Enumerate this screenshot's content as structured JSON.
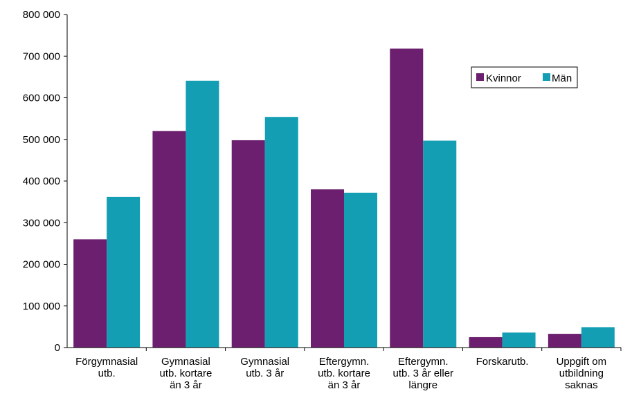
{
  "chart_data": {
    "type": "bar",
    "categories": [
      [
        "Förgymnasial",
        "utb."
      ],
      [
        "Gymnasial",
        "utb. kortare",
        "än 3 år"
      ],
      [
        "Gymnasial",
        "utb. 3 år"
      ],
      [
        "Eftergymn.",
        "utb. kortare",
        "än 3 år"
      ],
      [
        "Eftergymn.",
        "utb. 3 år eller",
        "längre"
      ],
      [
        "Forskarutb."
      ],
      [
        "Uppgift om",
        "utbildning",
        "saknas"
      ]
    ],
    "series": [
      {
        "name": "Kvinnor",
        "color": "#6b1f6e",
        "values": [
          260000,
          520000,
          498000,
          380000,
          718000,
          25000,
          33000
        ]
      },
      {
        "name": "Män",
        "color": "#139eb3",
        "values": [
          362000,
          641000,
          554000,
          372000,
          497000,
          36000,
          49000
        ]
      }
    ],
    "ylim": [
      0,
      800000
    ],
    "yticks": [
      0,
      100000,
      200000,
      300000,
      400000,
      500000,
      600000,
      700000,
      800000
    ],
    "ytick_labels": [
      "0",
      "100 000",
      "200 000",
      "300 000",
      "400 000",
      "500 000",
      "600 000",
      "700 000",
      "800 000"
    ],
    "grid": false,
    "legend_position": "top-right"
  }
}
